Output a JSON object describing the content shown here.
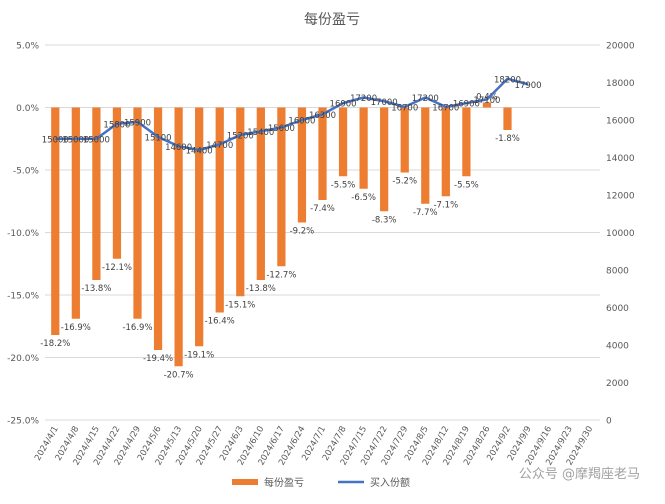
{
  "chart_data": {
    "type": "bar+line",
    "title": "每份盈亏",
    "colors": {
      "bar": "#ED7D31",
      "line": "#4472C4",
      "grid": "#d9d9d9",
      "text": "#595959",
      "title": "#595959"
    },
    "categories": [
      "2024/4/1",
      "2024/4/8",
      "2024/4/15",
      "2024/4/22",
      "2024/4/29",
      "2024/5/6",
      "2024/5/13",
      "2024/5/20",
      "2024/5/27",
      "2024/6/3",
      "2024/6/10",
      "2024/6/17",
      "2024/6/24",
      "2024/7/1",
      "2024/7/8",
      "2024/7/15",
      "2024/7/22",
      "2024/7/29",
      "2024/8/5",
      "2024/8/12",
      "2024/8/19",
      "2024/8/26",
      "2024/9/2",
      "2024/9/9",
      "2024/9/16",
      "2024/9/23",
      "2024/9/30"
    ],
    "series": [
      {
        "name": "每份盈亏",
        "type": "bar",
        "axis": "left",
        "values": [
          -18.2,
          -16.9,
          -13.8,
          -12.1,
          -16.9,
          -19.4,
          -20.7,
          -19.1,
          -16.4,
          -15.1,
          -13.8,
          -12.7,
          -9.2,
          -7.4,
          -5.5,
          -6.5,
          -8.3,
          -5.2,
          -7.7,
          -7.1,
          -5.5,
          0.4,
          -1.8,
          null,
          null,
          null,
          null
        ],
        "labels": [
          "-18.2%",
          "-16.9%",
          "-13.8%",
          "-12.1%",
          "-16.9%",
          "-19.4%",
          "-20.7%",
          "-19.1%",
          "-16.4%",
          "-15.1%",
          "-13.8%",
          "-12.7%",
          "-9.2%",
          "-7.4%",
          "-5.5%",
          "-6.5%",
          "-8.3%",
          "-5.2%",
          "-7.7%",
          "-7.1%",
          "-5.5%",
          "0.4%",
          "-1.8%",
          "",
          "",
          "",
          ""
        ]
      },
      {
        "name": "买入份额",
        "type": "line",
        "axis": "right",
        "values": [
          15000,
          15000,
          15000,
          15800,
          15900,
          15100,
          14600,
          14400,
          14700,
          15200,
          15400,
          15600,
          16000,
          16300,
          16900,
          17200,
          17000,
          16700,
          17200,
          16700,
          16900,
          17100,
          18200,
          17900,
          null,
          null,
          null
        ],
        "labels": [
          "15000",
          "15000",
          "15000",
          "15800",
          "15900",
          "15100",
          "14600",
          "14400",
          "14700",
          "15200",
          "15400",
          "15600",
          "16000",
          "16300",
          "16900",
          "17200",
          "17000",
          "16700",
          "17200",
          "16700",
          "16900",
          "17100",
          "18200",
          "17900",
          "",
          "",
          ""
        ]
      }
    ],
    "y_left": {
      "min": -25,
      "max": 5,
      "step": 5,
      "tick_labels": [
        "-25.0%",
        "-20.0%",
        "-15.0%",
        "-10.0%",
        "-5.0%",
        "0.0%",
        "5.0%"
      ]
    },
    "y_right": {
      "min": 0,
      "max": 20000,
      "step": 2000,
      "tick_labels": [
        "0",
        "2000",
        "4000",
        "6000",
        "8000",
        "10000",
        "12000",
        "14000",
        "16000",
        "18000",
        "20000"
      ]
    },
    "grid": true,
    "legend_position": "bottom"
  },
  "watermark": "公众号 @摩羯座老马"
}
